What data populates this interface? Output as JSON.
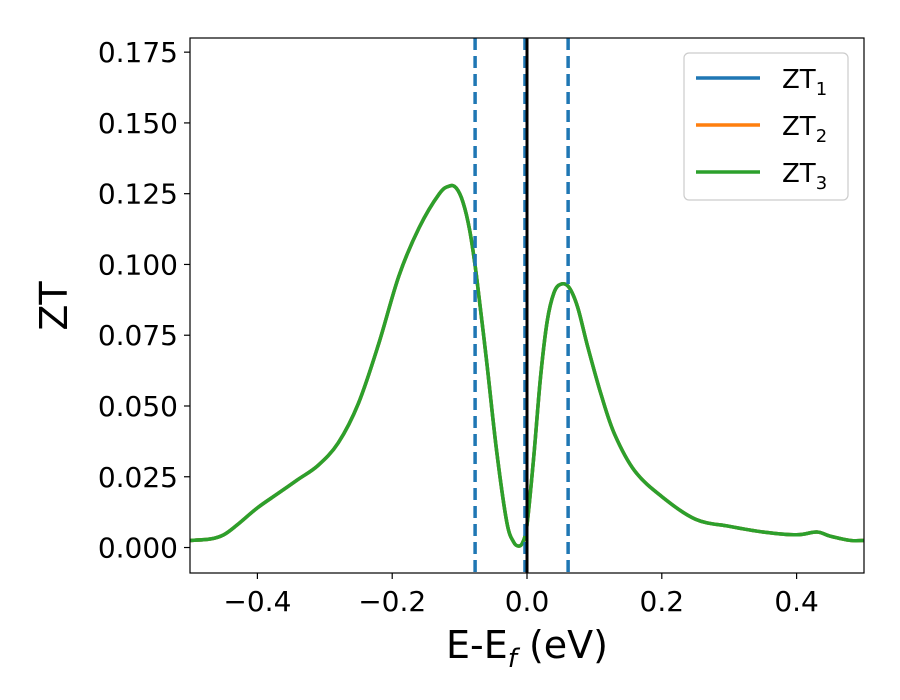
{
  "chart_data": {
    "type": "line",
    "xlabel": {
      "base": "E-E",
      "sub": "f",
      "suffix": " (eV)"
    },
    "ylabel": "ZT",
    "xlim": [
      -0.5,
      0.5
    ],
    "ylim": [
      -0.009,
      0.18
    ],
    "x_ticks": [
      -0.4,
      -0.2,
      0.0,
      0.2,
      0.4
    ],
    "x_tick_labels": [
      "−0.4",
      "−0.2",
      "0.0",
      "0.2",
      "0.4"
    ],
    "y_ticks": [
      0.0,
      0.025,
      0.05,
      0.075,
      0.1,
      0.125,
      0.15,
      0.175
    ],
    "y_tick_labels": [
      "0.000",
      "0.025",
      "0.050",
      "0.075",
      "0.100",
      "0.125",
      "0.150",
      "0.175"
    ],
    "grid": false,
    "legend_position": "top-right",
    "x": [
      -0.5,
      -0.47,
      -0.45,
      -0.43,
      -0.4,
      -0.37,
      -0.34,
      -0.31,
      -0.28,
      -0.25,
      -0.22,
      -0.19,
      -0.16,
      -0.13,
      -0.115,
      -0.105,
      -0.095,
      -0.085,
      -0.075,
      -0.06,
      -0.045,
      -0.03,
      -0.02,
      -0.012,
      -0.006,
      0.0,
      0.01,
      0.02,
      0.03,
      0.04,
      0.05,
      0.062,
      0.075,
      0.09,
      0.11,
      0.13,
      0.16,
      0.2,
      0.25,
      0.3,
      0.35,
      0.4,
      0.43,
      0.45,
      0.48,
      0.5
    ],
    "series": [
      {
        "name": "ZT",
        "sub": "1",
        "color": "#1f77b4",
        "values": [
          0.0025,
          0.003,
          0.0045,
          0.008,
          0.014,
          0.019,
          0.024,
          0.029,
          0.037,
          0.051,
          0.072,
          0.096,
          0.113,
          0.125,
          0.1277,
          0.127,
          0.122,
          0.112,
          0.096,
          0.066,
          0.034,
          0.009,
          0.002,
          0.0005,
          0.002,
          0.008,
          0.032,
          0.06,
          0.08,
          0.09,
          0.093,
          0.092,
          0.085,
          0.071,
          0.054,
          0.04,
          0.027,
          0.018,
          0.01,
          0.0075,
          0.0055,
          0.0045,
          0.0055,
          0.004,
          0.0025,
          0.0025
        ]
      },
      {
        "name": "ZT",
        "sub": "2",
        "color": "#ff7f0e",
        "values": [
          0.0025,
          0.003,
          0.0045,
          0.008,
          0.014,
          0.019,
          0.024,
          0.029,
          0.037,
          0.051,
          0.072,
          0.096,
          0.113,
          0.125,
          0.1277,
          0.127,
          0.122,
          0.112,
          0.096,
          0.066,
          0.034,
          0.009,
          0.002,
          0.0005,
          0.002,
          0.008,
          0.032,
          0.06,
          0.08,
          0.09,
          0.093,
          0.092,
          0.085,
          0.071,
          0.054,
          0.04,
          0.027,
          0.018,
          0.01,
          0.0075,
          0.0055,
          0.0045,
          0.0055,
          0.004,
          0.0025,
          0.0025
        ]
      },
      {
        "name": "ZT",
        "sub": "3",
        "color": "#2ca02c",
        "values": [
          0.0025,
          0.003,
          0.0045,
          0.008,
          0.014,
          0.019,
          0.024,
          0.029,
          0.037,
          0.051,
          0.072,
          0.096,
          0.113,
          0.125,
          0.1277,
          0.127,
          0.122,
          0.112,
          0.096,
          0.066,
          0.034,
          0.009,
          0.002,
          0.0005,
          0.002,
          0.008,
          0.032,
          0.06,
          0.08,
          0.09,
          0.093,
          0.092,
          0.085,
          0.071,
          0.054,
          0.04,
          0.027,
          0.018,
          0.01,
          0.0075,
          0.0055,
          0.0045,
          0.0055,
          0.004,
          0.0025,
          0.0025
        ]
      }
    ],
    "vertical_lines": [
      {
        "x": -0.077,
        "style": "dashed",
        "color": "#1f77b4"
      },
      {
        "x": -0.003,
        "style": "dashed",
        "color": "#1f77b4"
      },
      {
        "x": 0.061,
        "style": "dashed",
        "color": "#1f77b4"
      },
      {
        "x": 0.0,
        "style": "solid",
        "color": "#000000"
      }
    ]
  }
}
